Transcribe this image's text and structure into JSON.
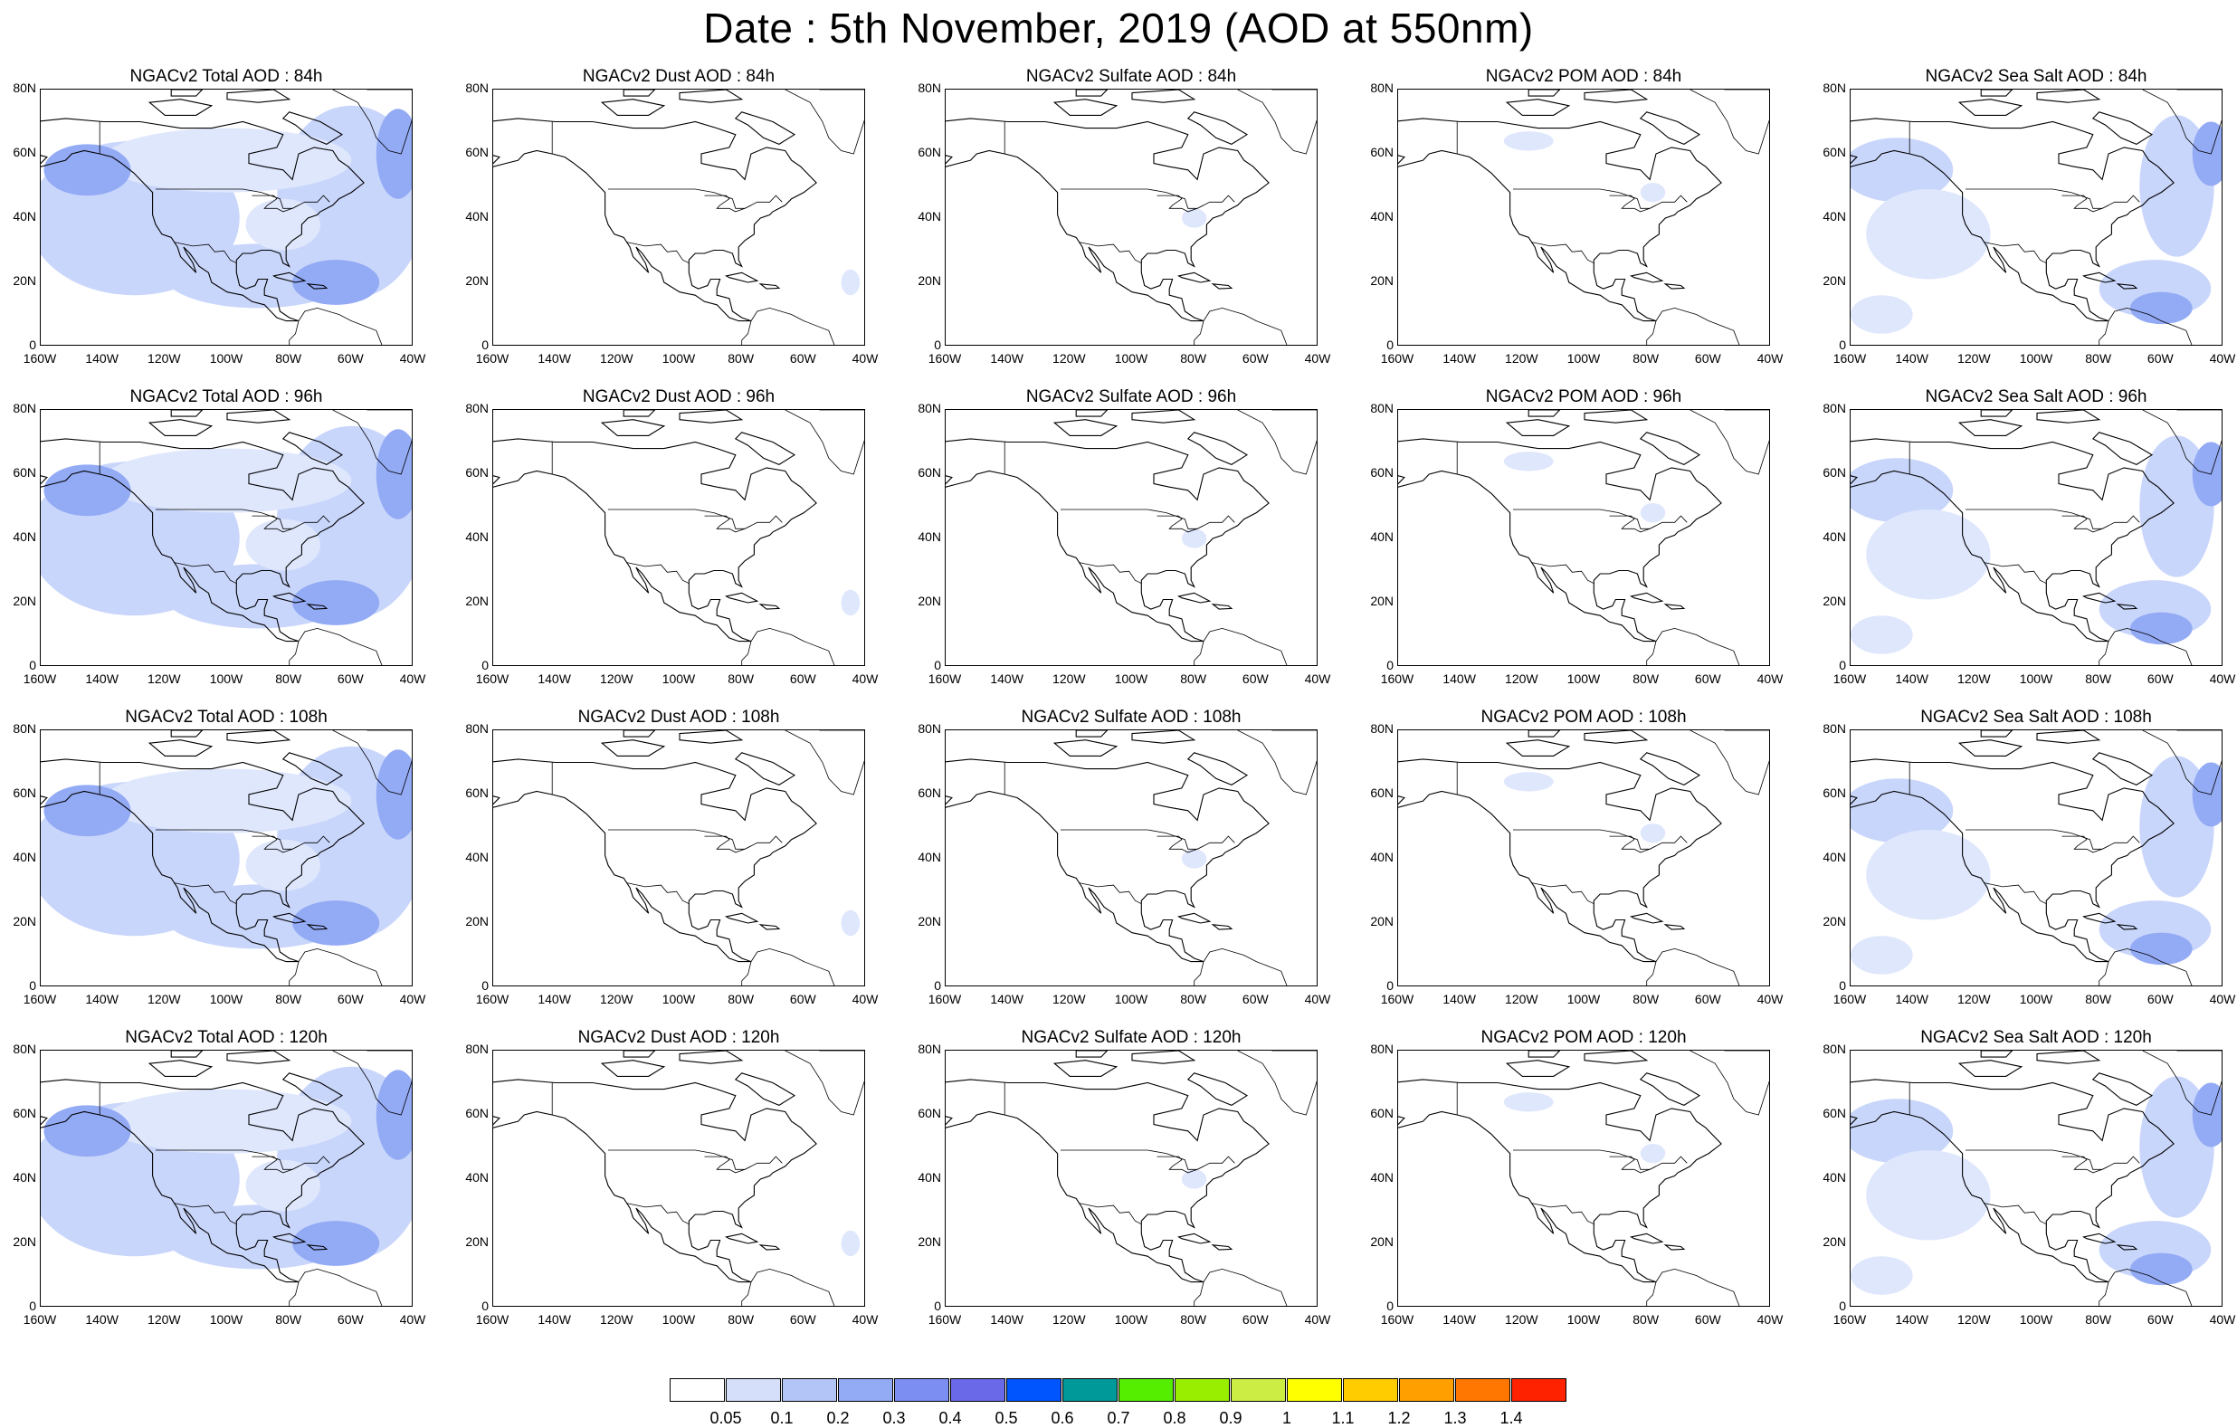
{
  "title": "Date : 5th November, 2019 (AOD at 550nm)",
  "rows": [
    {
      "lead": "84h",
      "panels": [
        {
          "name": "total",
          "title": "NGACv2 Total AOD : 84h"
        },
        {
          "name": "dust",
          "title": "NGACv2 Dust AOD : 84h"
        },
        {
          "name": "sulfate",
          "title": "NGACv2 Sulfate AOD : 84h"
        },
        {
          "name": "pom",
          "title": "NGACv2 POM AOD : 84h"
        },
        {
          "name": "seasalt",
          "title": "NGACv2 Sea Salt AOD : 84h"
        }
      ]
    },
    {
      "lead": "96h",
      "panels": [
        {
          "name": "total",
          "title": "NGACv2 Total AOD : 96h"
        },
        {
          "name": "dust",
          "title": "NGACv2 Dust AOD : 96h"
        },
        {
          "name": "sulfate",
          "title": "NGACv2 Sulfate AOD : 96h"
        },
        {
          "name": "pom",
          "title": "NGACv2 POM AOD : 96h"
        },
        {
          "name": "seasalt",
          "title": "NGACv2 Sea Salt AOD : 96h"
        }
      ]
    },
    {
      "lead": "108h",
      "panels": [
        {
          "name": "total",
          "title": "NGACv2 Total AOD : 108h"
        },
        {
          "name": "dust",
          "title": "NGACv2 Dust AOD : 108h"
        },
        {
          "name": "sulfate",
          "title": "NGACv2 Sulfate AOD : 108h"
        },
        {
          "name": "pom",
          "title": "NGACv2 POM AOD : 108h"
        },
        {
          "name": "seasalt",
          "title": "NGACv2 Sea Salt  AOD : 108h"
        }
      ]
    },
    {
      "lead": "120h",
      "panels": [
        {
          "name": "total",
          "title": "NGACv2 Total AOD : 120h"
        },
        {
          "name": "dust",
          "title": "NGACv2 Dust AOD : 120h"
        },
        {
          "name": "sulfate",
          "title": "NGACv2 Sulfate AOD : 120h"
        },
        {
          "name": "pom",
          "title": "NGACv2 POM AOD : 120h"
        },
        {
          "name": "seasalt",
          "title": "NGACv2 Sea Salt  AOD : 120h"
        }
      ]
    }
  ],
  "lat_labels": [
    "80N",
    "60N",
    "40N",
    "20N",
    "0"
  ],
  "lon_labels": [
    "160W",
    "140W",
    "120W",
    "100W",
    "80W",
    "60W",
    "40W"
  ],
  "colorbar": {
    "colors": [
      "#ffffff",
      "#d5dffa",
      "#b3c4f7",
      "#93aaf5",
      "#7d8ef2",
      "#6a6ae8",
      "#0055ff",
      "#009999",
      "#55ee00",
      "#99ee00",
      "#ccee44",
      "#ffff00",
      "#ffcc00",
      "#ffa000",
      "#ff7700",
      "#ff2200"
    ],
    "labels": [
      "0.05",
      "0.1",
      "0.2",
      "0.3",
      "0.4",
      "0.5",
      "0.6",
      "0.7",
      "0.8",
      "0.9",
      "1",
      "1.1",
      "1.2",
      "1.3",
      "1.4"
    ]
  },
  "shading": {
    "total": "#c9d6fb",
    "seasalt": "#c9d6fb",
    "dense": "#93aaf5",
    "light": "#dfe7fd"
  }
}
